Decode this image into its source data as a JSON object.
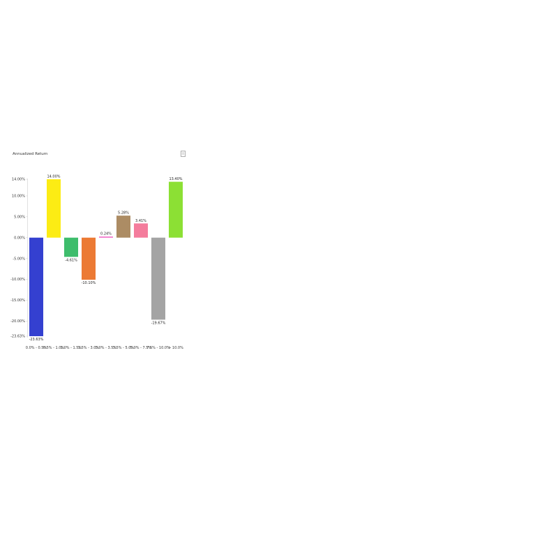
{
  "chart": {
    "title": "Annualized Return",
    "menu_icon": "document-icon"
  },
  "chart_data": {
    "type": "bar",
    "title": "Annualized Return",
    "xlabel": "",
    "ylabel": "",
    "categories": [
      "0.0% - 0.5%",
      "0.5% - 1.0%",
      "1.0% - 1.5%",
      "1.5% - 3.0%",
      "3.0% - 3.5%",
      "3.5% - 5.0%",
      "5.0% - 7.5%",
      "7.5% - 10.0%",
      "> 10.0%"
    ],
    "values": [
      -23.63,
      14.0,
      -4.61,
      -10.1,
      0.24,
      5.28,
      3.41,
      -19.67,
      13.4
    ],
    "data_labels": [
      "-23.63%",
      "14.00%",
      "-4.61%",
      "-10.10%",
      "0.24%",
      "5.28%",
      "3.41%",
      "-19.67%",
      "13.40%"
    ],
    "colors": [
      "#3440d0",
      "#fcec14",
      "#3ebd6c",
      "#ec7a34",
      "#f060c4",
      "#ac8c64",
      "#f47c9c",
      "#a4a4a4",
      "#8ce034"
    ],
    "y_ticks": [
      14,
      10,
      5,
      0,
      -5,
      -10,
      -15,
      -20,
      -23.63
    ],
    "y_tick_labels": [
      "14.00%",
      "10.00%",
      "5.00%",
      "0.00%",
      "-5.00%",
      "-10.00%",
      "-15.00%",
      "-20.00%",
      "-23.63%"
    ],
    "ylim": [
      -23.63,
      14.0
    ],
    "grid": false,
    "legend": "none"
  }
}
